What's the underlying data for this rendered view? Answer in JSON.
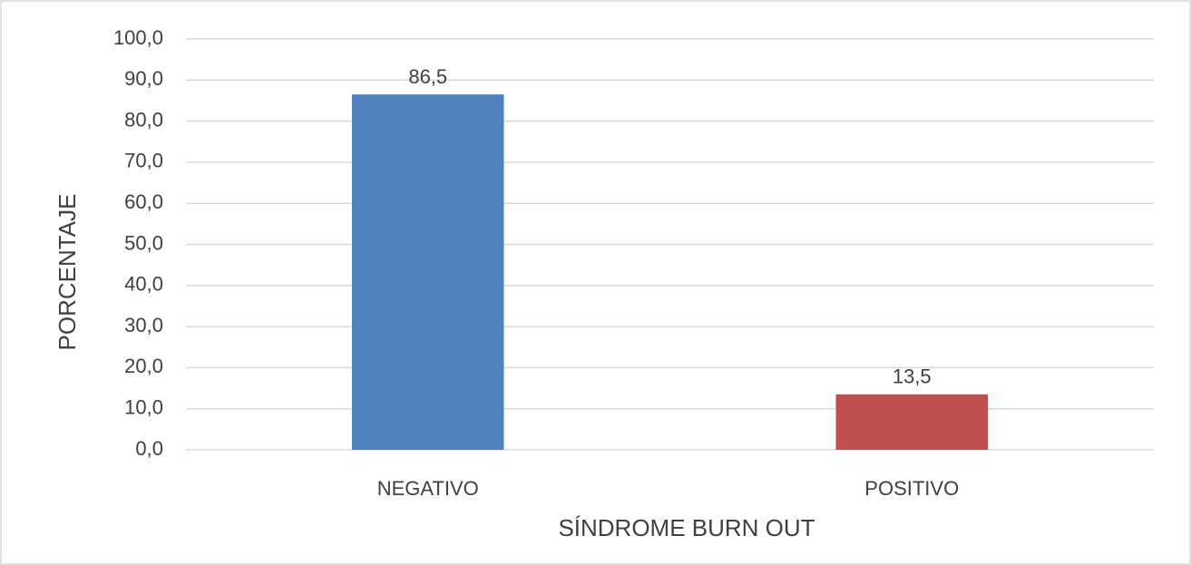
{
  "chart_data": {
    "type": "bar",
    "xlabel": "SÍNDROME BURN OUT",
    "ylabel": "PORCENTAJE",
    "categories": [
      "NEGATIVO",
      "POSITIVO"
    ],
    "values": [
      86.5,
      13.5
    ],
    "value_labels": [
      "86,5",
      "13,5"
    ],
    "colors": [
      "#4f81bd",
      "#c0504d"
    ],
    "ylim": [
      0,
      100
    ],
    "yticks": [
      {
        "value": 0,
        "label": "0,0"
      },
      {
        "value": 10,
        "label": "10,0"
      },
      {
        "value": 20,
        "label": "20,0"
      },
      {
        "value": 30,
        "label": "30,0"
      },
      {
        "value": 40,
        "label": "40,0"
      },
      {
        "value": 50,
        "label": "50,0"
      },
      {
        "value": 60,
        "label": "60,0"
      },
      {
        "value": 70,
        "label": "70,0"
      },
      {
        "value": 80,
        "label": "80,0"
      },
      {
        "value": 90,
        "label": "90,0"
      },
      {
        "value": 100,
        "label": "100,0"
      }
    ],
    "grid": true
  }
}
